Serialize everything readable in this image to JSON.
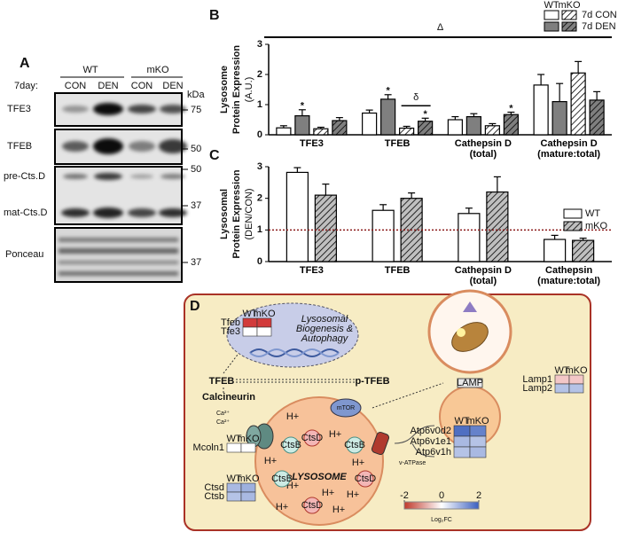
{
  "panel_labels": [
    "A",
    "B",
    "C",
    "D"
  ],
  "blot": {
    "groups": [
      "WT",
      "mKO"
    ],
    "day_label": "7day:",
    "lanes": [
      "CON",
      "DEN",
      "CON",
      "DEN"
    ],
    "kda": "kDa",
    "rows": [
      "TFE3",
      "TFEB",
      "pre-Cts.D",
      "mat-Cts.D",
      "Ponceau"
    ],
    "markers": [
      75,
      50,
      50,
      37,
      37
    ]
  },
  "chart_data": [
    {
      "type": "bar",
      "y_label": [
        "Lysosome",
        "Protein Expression",
        "(A.U.)"
      ],
      "categories": [
        "TFE3",
        "TFEB",
        "Cathepsin D\n(total)",
        "Cathepsin D\n(mature:total)"
      ],
      "series": [
        {
          "color": "#ffffff",
          "hatch": false,
          "values": [
            0.23,
            0.72,
            0.5,
            1.65
          ],
          "errors": [
            0.07,
            0.1,
            0.1,
            0.35
          ]
        },
        {
          "color": "#7f7f7f",
          "hatch": false,
          "values": [
            0.63,
            1.18,
            0.6,
            1.1
          ],
          "errors": [
            0.2,
            0.15,
            0.1,
            0.6
          ]
        },
        {
          "color": "#ffffff",
          "hatch": true,
          "values": [
            0.2,
            0.22,
            0.3,
            2.05
          ],
          "errors": [
            0.05,
            0.06,
            0.07,
            0.38
          ]
        },
        {
          "color": "#7f7f7f",
          "hatch": true,
          "values": [
            0.47,
            0.45,
            0.67,
            1.15
          ],
          "errors": [
            0.1,
            0.1,
            0.08,
            0.28
          ]
        }
      ],
      "legend": {
        "columns": [
          "WT",
          "mKO"
        ],
        "rows": [
          "7d CON",
          "7d DEN"
        ]
      },
      "ylim": [
        0,
        3
      ],
      "yticks": [
        0,
        1,
        2,
        3
      ],
      "stars": [
        {
          "text": "*",
          "category": 0,
          "series": 1
        },
        {
          "text": "*",
          "category": 1,
          "series": 1
        },
        {
          "text": "*",
          "category": 1,
          "series": 3
        },
        {
          "text": "*",
          "category": 2,
          "series": 3
        }
      ],
      "brackets": [
        {
          "text": "δ",
          "category": 1,
          "series": [
            2,
            3
          ]
        }
      ],
      "overall": "Δ"
    },
    {
      "type": "bar",
      "y_label": [
        "Lysosomal",
        "Protein Expression",
        "(DEN/CON)"
      ],
      "categories": [
        "TFE3",
        "TFEB",
        "Cathepsin D\n(total)",
        "Cathepsin\n(mature:total)"
      ],
      "series": [
        {
          "name": "WT",
          "color": "#ffffff",
          "hatch": false,
          "values": [
            2.82,
            1.62,
            1.52,
            0.7
          ],
          "errors": [
            0.15,
            0.18,
            0.17,
            0.13
          ]
        },
        {
          "name": "mKO",
          "color": "#bfbfbf",
          "hatch": true,
          "values": [
            2.1,
            2.0,
            2.2,
            0.67
          ],
          "errors": [
            0.35,
            0.17,
            0.48,
            0.07
          ]
        }
      ],
      "ylim": [
        0,
        3
      ],
      "yticks": [
        0,
        1,
        2,
        3
      ],
      "reference_line": 1
    }
  ],
  "diagram": {
    "nucleus_text": [
      "Lysosomal",
      "Biogenesis &",
      "Autophagy"
    ],
    "tfeb": "TFEB",
    "ptfeb": "p-TFEB",
    "calcineurin": "Calcineurin",
    "ca": [
      "Ca²⁺",
      "Ca²⁺"
    ],
    "mtor": "mTOR",
    "lysosome": "LYSOSOME",
    "vatpase": "v-ATPase",
    "lamp": "LAMP",
    "protons": [
      "H+",
      "H+",
      "H+",
      "H+",
      "H+",
      "H+",
      "H+",
      "H+",
      "H+"
    ],
    "cathepsins": [
      "CtsD",
      "CtsB",
      "CtsB",
      "CtsB",
      "CtsD",
      "CtsD"
    ],
    "heatmaps": [
      {
        "columns": [
          "WT",
          "mKO"
        ],
        "rows": [
          {
            "label": "Tfeb",
            "colors": [
              "#d23b3b",
              "#d23b3b"
            ]
          },
          {
            "label": "Tfe3",
            "colors": [
              "#ffffff",
              "#ffffff"
            ]
          }
        ]
      },
      {
        "columns": [
          "WT",
          "mKO"
        ],
        "rows": [
          {
            "label": "Mcoln1",
            "colors": [
              "#ffffff",
              "#ffffff"
            ]
          }
        ]
      },
      {
        "columns": [
          "WT",
          "mKO"
        ],
        "rows": [
          {
            "label": "Ctsd",
            "colors": [
              "#a9b9e2",
              "#9db0de"
            ]
          },
          {
            "label": "Ctsb",
            "colors": [
              "#b5c3e6",
              "#a9b9e2"
            ]
          }
        ]
      },
      {
        "columns": [
          "WT",
          "mKO"
        ],
        "rows": [
          {
            "label": "Atp6v0d2",
            "colors": [
              "#4f6fc2",
              "#6582cb"
            ]
          },
          {
            "label": "Atp6v1e1",
            "colors": [
              "#a9b9e2",
              "#b5c3e6"
            ]
          },
          {
            "label": "Atp6v1h",
            "colors": [
              "#b5c3e6",
              "#a9b9e2"
            ]
          }
        ]
      },
      {
        "columns": [
          "WT",
          "mKO"
        ],
        "rows": [
          {
            "label": "Lamp1",
            "colors": [
              "#f3c7c7",
              "#f3c7c7"
            ]
          },
          {
            "label": "Lamp2",
            "colors": [
              "#b5c3e6",
              "#b5c3e6"
            ]
          }
        ]
      }
    ],
    "colorbar": {
      "ticks": [
        -2,
        0,
        2
      ],
      "label": "Log₂FC",
      "colors": [
        "#c0392b",
        "#ffffff",
        "#3b5fc0"
      ]
    }
  }
}
